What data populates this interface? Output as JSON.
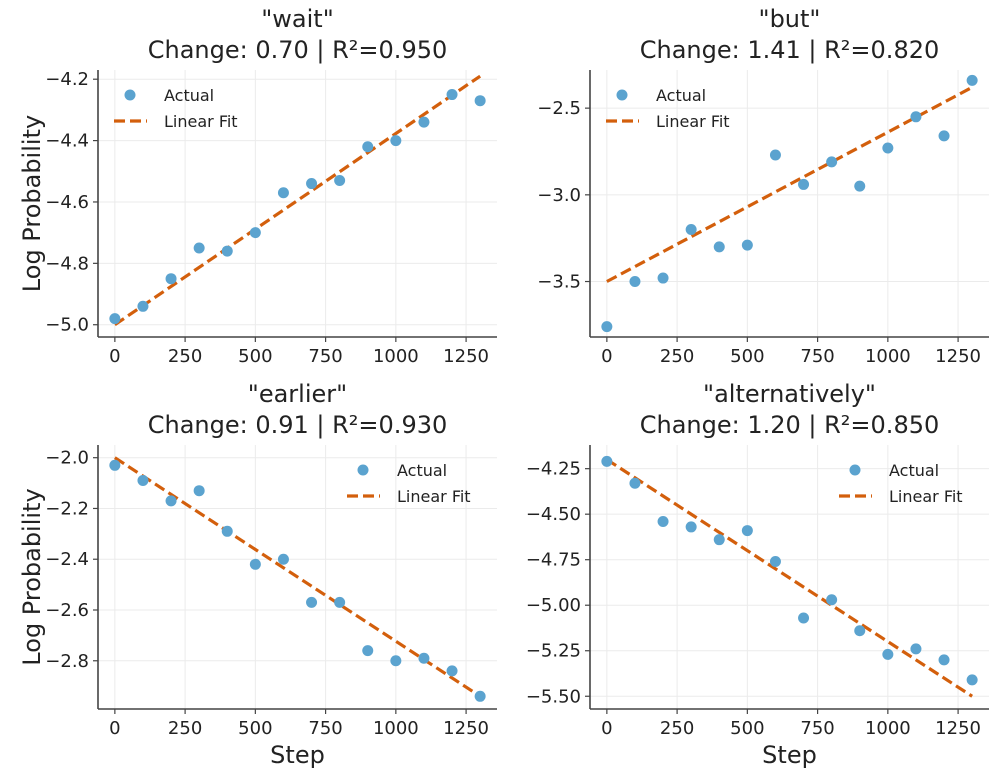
{
  "colors": {
    "actual": "#5ba3cf",
    "fit": "#d35f0c"
  },
  "legend": {
    "actual_label": "Actual",
    "fit_label": "Linear Fit"
  },
  "chart_data": [
    {
      "type": "scatter",
      "title_word": "\"wait\"",
      "title_stats": "Change: 0.70 | R²=0.950",
      "xlabel": "",
      "ylabel": "Log Probability",
      "xlim": [
        -60,
        1360
      ],
      "ylim": [
        -5.04,
        -4.17
      ],
      "xticks": [
        0,
        250,
        500,
        750,
        1000,
        1250
      ],
      "xtick_labels": [
        "0",
        "250",
        "500",
        "750",
        "1000",
        "1250"
      ],
      "yticks": [
        -5.0,
        -4.8,
        -4.6,
        -4.4,
        -4.2
      ],
      "ytick_labels": [
        "−5.0",
        "−4.8",
        "−4.6",
        "−4.4",
        "−4.2"
      ],
      "legend_position": "upper-left",
      "x": [
        0,
        100,
        200,
        300,
        400,
        500,
        600,
        700,
        800,
        900,
        1000,
        1100,
        1200,
        1300
      ],
      "y": [
        -4.98,
        -4.94,
        -4.85,
        -4.75,
        -4.76,
        -4.7,
        -4.57,
        -4.54,
        -4.53,
        -4.42,
        -4.4,
        -4.34,
        -4.25,
        -4.27
      ],
      "fit": {
        "x": [
          0,
          1300
        ],
        "y": [
          -5.0,
          -4.19
        ]
      }
    },
    {
      "type": "scatter",
      "title_word": "\"but\"",
      "title_stats": "Change: 1.41 | R²=0.820",
      "xlabel": "",
      "ylabel": "",
      "xlim": [
        -60,
        1360
      ],
      "ylim": [
        -3.82,
        -2.28
      ],
      "xticks": [
        0,
        250,
        500,
        750,
        1000,
        1250
      ],
      "xtick_labels": [
        "0",
        "250",
        "500",
        "750",
        "1000",
        "1250"
      ],
      "yticks": [
        -3.5,
        -3.0,
        -2.5
      ],
      "ytick_labels": [
        "−3.5",
        "−3.0",
        "−2.5"
      ],
      "legend_position": "upper-left",
      "x": [
        0,
        100,
        200,
        300,
        400,
        500,
        600,
        700,
        800,
        900,
        1000,
        1100,
        1200,
        1300
      ],
      "y": [
        -3.76,
        -3.5,
        -3.48,
        -3.2,
        -3.3,
        -3.29,
        -2.77,
        -2.94,
        -2.81,
        -2.95,
        -2.73,
        -2.55,
        -2.66,
        -2.34
      ],
      "fit": {
        "x": [
          0,
          1300
        ],
        "y": [
          -3.5,
          -2.38
        ]
      }
    },
    {
      "type": "scatter",
      "title_word": "\"earlier\"",
      "title_stats": "Change: 0.91 | R²=0.930",
      "xlabel": "Step",
      "ylabel": "Log Probability",
      "xlim": [
        -60,
        1360
      ],
      "ylim": [
        -2.99,
        -1.95
      ],
      "xticks": [
        0,
        250,
        500,
        750,
        1000,
        1250
      ],
      "xtick_labels": [
        "0",
        "250",
        "500",
        "750",
        "1000",
        "1250"
      ],
      "yticks": [
        -2.8,
        -2.6,
        -2.4,
        -2.2,
        -2.0
      ],
      "ytick_labels": [
        "−2.8",
        "−2.6",
        "−2.4",
        "−2.2",
        "−2.0"
      ],
      "legend_position": "upper-right",
      "x": [
        0,
        100,
        200,
        300,
        400,
        500,
        600,
        700,
        800,
        900,
        1000,
        1100,
        1200,
        1300
      ],
      "y": [
        -2.03,
        -2.09,
        -2.17,
        -2.13,
        -2.29,
        -2.42,
        -2.4,
        -2.57,
        -2.57,
        -2.76,
        -2.8,
        -2.79,
        -2.84,
        -2.94
      ],
      "fit": {
        "x": [
          0,
          1300
        ],
        "y": [
          -2.0,
          -2.94
        ]
      }
    },
    {
      "type": "scatter",
      "title_word": "\"alternatively\"",
      "title_stats": "Change: 1.20 | R²=0.850",
      "xlabel": "Step",
      "ylabel": "",
      "xlim": [
        -60,
        1360
      ],
      "ylim": [
        -5.57,
        -4.12
      ],
      "xticks": [
        0,
        250,
        500,
        750,
        1000,
        1250
      ],
      "xtick_labels": [
        "0",
        "250",
        "500",
        "750",
        "1000",
        "1250"
      ],
      "yticks": [
        -5.5,
        -5.25,
        -5.0,
        -4.75,
        -4.5,
        -4.25
      ],
      "ytick_labels": [
        "−5.50",
        "−5.25",
        "−5.00",
        "−4.75",
        "−4.50",
        "−4.25"
      ],
      "legend_position": "upper-right",
      "x": [
        0,
        100,
        200,
        300,
        400,
        500,
        600,
        700,
        800,
        900,
        1000,
        1100,
        1200,
        1300
      ],
      "y": [
        -4.21,
        -4.33,
        -4.54,
        -4.57,
        -4.64,
        -4.59,
        -4.76,
        -5.07,
        -4.97,
        -5.14,
        -5.27,
        -5.24,
        -5.3,
        -5.41
      ],
      "fit": {
        "x": [
          0,
          1300
        ],
        "y": [
          -4.2,
          -5.5
        ]
      }
    }
  ]
}
